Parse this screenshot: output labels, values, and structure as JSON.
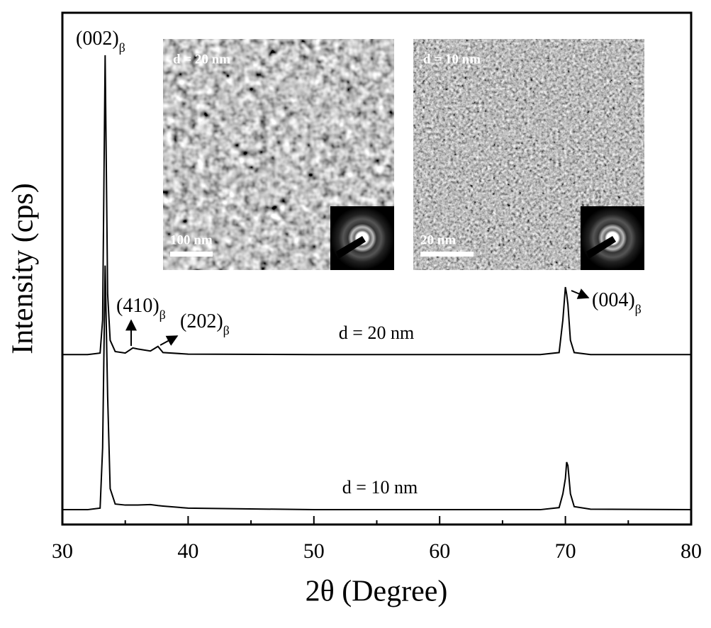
{
  "chart_data": {
    "type": "line",
    "x_label": "2θ (Degree)",
    "y_label": "Intensity (cps)",
    "xlim": [
      30,
      80
    ],
    "xticks": [
      30,
      40,
      50,
      60,
      70,
      80
    ],
    "xticks_minor": [
      35,
      45,
      55,
      65,
      75
    ],
    "ylim": [
      0,
      100
    ],
    "x": [
      30,
      32,
      33,
      33.2,
      33.4,
      33.6,
      33.8,
      34.2,
      35,
      35.6,
      36,
      37,
      37.6,
      38,
      40,
      50,
      60,
      68,
      69.5,
      69.8,
      70,
      70.1,
      70.2,
      70.4,
      70.7,
      72,
      80
    ],
    "series": [
      {
        "name": "d = 20 nm",
        "color": "#000000",
        "values": [
          33.2,
          33.2,
          33.5,
          40,
          91.7,
          45,
          36,
          33.8,
          33.5,
          34.5,
          34.3,
          33.9,
          34.8,
          33.6,
          33.3,
          33.2,
          33.2,
          33.2,
          33.6,
          40,
          46.4,
          45,
          43,
          36,
          33.6,
          33.2,
          33.2
        ]
      },
      {
        "name": "d = 10 nm",
        "color": "#000000",
        "values": [
          2.9,
          2.9,
          3.2,
          15,
          50.6,
          25,
          7,
          4,
          3.8,
          3.8,
          3.8,
          3.9,
          3.7,
          3.6,
          3.2,
          2.9,
          2.9,
          2.9,
          3.3,
          6,
          9,
          12.2,
          11.5,
          6,
          3.5,
          3,
          2.9
        ]
      }
    ],
    "annotations": [
      {
        "text": "(002)",
        "sub": "β"
      },
      {
        "text": "(410)",
        "sub": "β"
      },
      {
        "text": "(202)",
        "sub": "β"
      },
      {
        "text": "(004)",
        "sub": "β"
      }
    ],
    "insets": [
      {
        "label": "d = 20 nm",
        "scale_bar": "100 nm"
      },
      {
        "label": "d = 10 nm",
        "scale_bar": "20 nm"
      }
    ]
  }
}
